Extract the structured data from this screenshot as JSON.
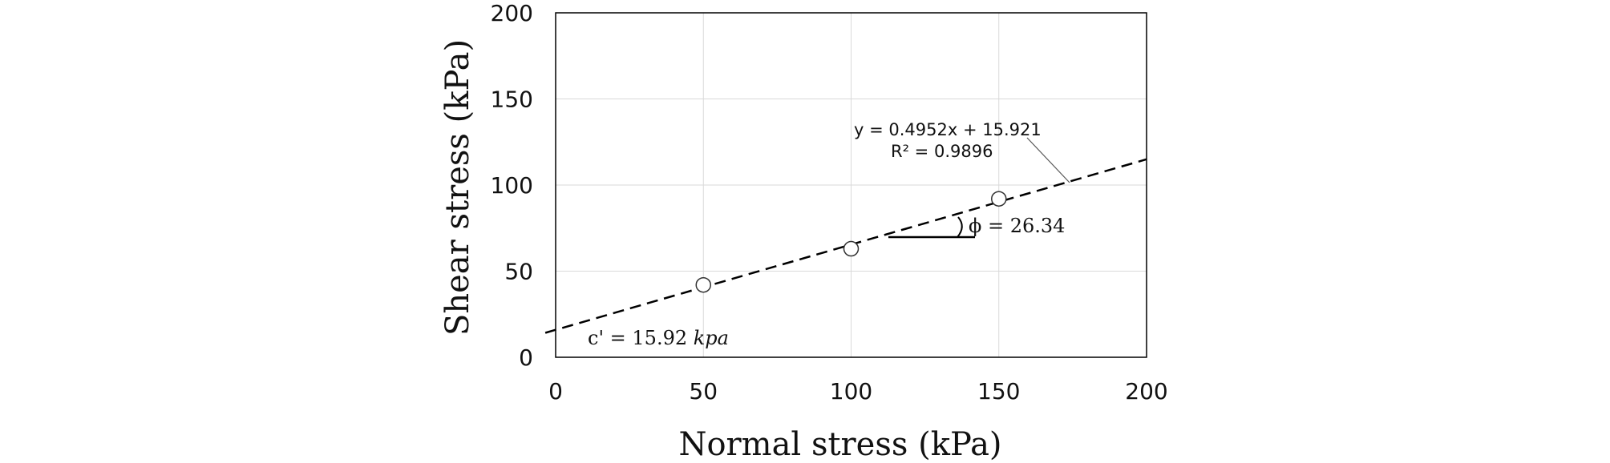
{
  "chart_data": {
    "type": "scatter",
    "xlabel": "Normal stress (kPa)",
    "ylabel": "Shear stress (kPa)",
    "xlim": [
      0,
      200
    ],
    "ylim": [
      0,
      200
    ],
    "xticks": [
      "0",
      "50",
      "100",
      "150",
      "200"
    ],
    "yticks": [
      "0",
      "50",
      "100",
      "150",
      "200"
    ],
    "grid": true,
    "points": [
      {
        "x": 50,
        "y": 42
      },
      {
        "x": 100,
        "y": 63
      },
      {
        "x": 150,
        "y": 92
      }
    ],
    "trendline": {
      "type": "linear",
      "slope": 0.4952,
      "intercept": 15.921,
      "style": "dashed",
      "equation_label": "y = 0.4952x + 15.921",
      "r2_label": "R² = 0.9896"
    },
    "annotations": {
      "friction_angle_symbol": "ϕ = 26.34",
      "cohesion_prefix": "c' = 15.92 ",
      "cohesion_unit": "kpa"
    }
  }
}
